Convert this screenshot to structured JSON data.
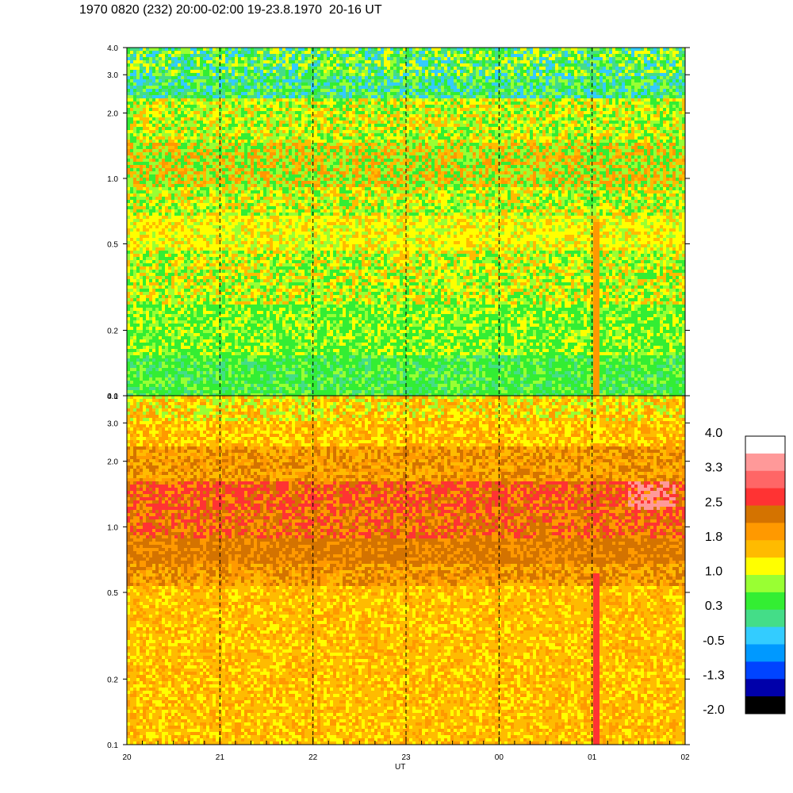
{
  "title": "1970 0820 (232) 20:00-02:00 19-23.8.1970  20-16 UT",
  "chart_data": [
    {
      "type": "heatmap",
      "panel": "upper",
      "x_range": [
        "20:00",
        "02:00"
      ],
      "y_scale": "log",
      "ylim": [
        0.1,
        4.0
      ],
      "yticks": [
        "0.1",
        "0.2",
        "0.5",
        "1.0",
        "2.0",
        "3.0",
        "4.0"
      ],
      "time_marker_lines": [
        "21",
        "22",
        "23",
        "00",
        "01"
      ],
      "dominant_level_by_band": [
        {
          "y_range": [
            0.1,
            0.3
          ],
          "level": 0.3
        },
        {
          "y_range": [
            0.3,
            0.7
          ],
          "level": 1.0
        },
        {
          "y_range": [
            0.7,
            1.4
          ],
          "level": 0.8
        },
        {
          "y_range": [
            1.4,
            1.8
          ],
          "level": 0.9
        },
        {
          "y_range": [
            1.8,
            4.0
          ],
          "level": 0.0
        }
      ]
    },
    {
      "type": "heatmap",
      "panel": "lower",
      "x_range": [
        "20:00",
        "02:00"
      ],
      "y_scale": "log",
      "ylim": [
        0.1,
        4.0
      ],
      "yticks": [
        "0.1",
        "0.2",
        "0.5",
        "1.0",
        "2.0",
        "3.0",
        "4.0"
      ],
      "xticks": [
        "20",
        "21",
        "22",
        "23",
        "00",
        "01",
        "02"
      ],
      "xlabel": "UT",
      "time_marker_lines": [
        "21",
        "22",
        "23",
        "00",
        "01"
      ],
      "dominant_level_by_band": [
        {
          "y_range": [
            0.1,
            0.5
          ],
          "level": 1.6
        },
        {
          "y_range": [
            0.5,
            0.85
          ],
          "level": 2.2
        },
        {
          "y_range": [
            0.85,
            1.5
          ],
          "level": 2.4
        },
        {
          "y_range": [
            1.5,
            3.0
          ],
          "level": 1.7
        },
        {
          "y_range": [
            3.0,
            4.0
          ],
          "level": 1.2
        }
      ]
    }
  ],
  "colorbar": {
    "labels": [
      "4.0",
      "3.3",
      "2.5",
      "1.8",
      "1.0",
      "0.3",
      "-0.5",
      "-1.3",
      "-2.0"
    ],
    "colors": [
      "#ffffff",
      "#ff9999",
      "#ff6666",
      "#ff3333",
      "#d47300",
      "#ff9900",
      "#ffbb00",
      "#ffff00",
      "#99ff33",
      "#33ee33",
      "#44dd88",
      "#33ccff",
      "#0099ff",
      "#0044ff",
      "#0000aa",
      "#000000"
    ]
  },
  "palette": {
    "white": "#ffffff",
    "pink": "#ff9999",
    "red": "#ff3333",
    "brown": "#d47300",
    "orange": "#ff9900",
    "amber": "#ffbb00",
    "yellow": "#ffff00",
    "lime": "#99ff33",
    "green": "#33ee33",
    "teal": "#44dd88",
    "cyan": "#33ccff",
    "sky": "#0099ff"
  }
}
